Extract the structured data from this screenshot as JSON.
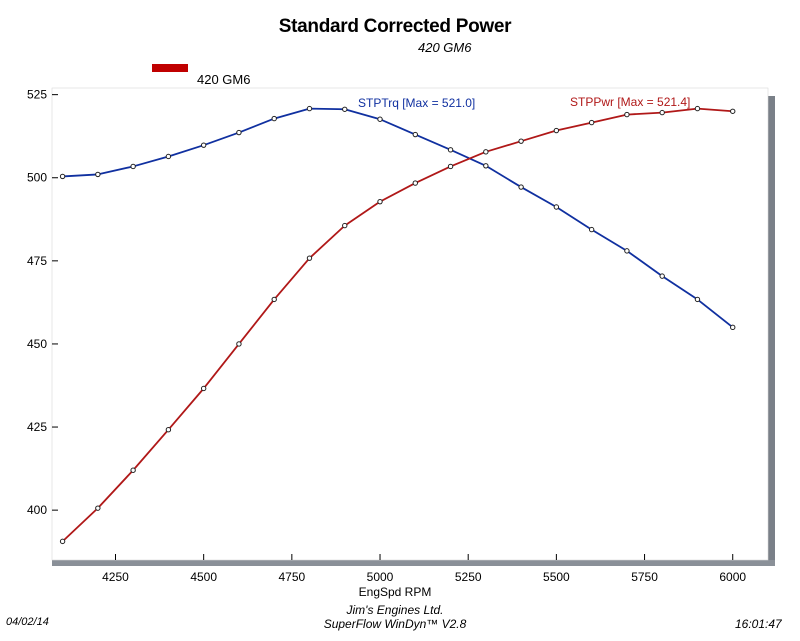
{
  "chart_data": {
    "type": "line",
    "title": "Standard Corrected Power",
    "subtitle": "420  GM6",
    "legend": {
      "label": "420  GM6",
      "color": "#c00000",
      "placement": "top-left"
    },
    "xlabel": "EngSpd  RPM",
    "ylabel": "",
    "xlim": [
      4070,
      6100
    ],
    "ylim": [
      385,
      527
    ],
    "xticks": [
      4250,
      4500,
      4750,
      5000,
      5250,
      5500,
      5750,
      6000
    ],
    "yticks": [
      400,
      425,
      450,
      475,
      500,
      525
    ],
    "grid": false,
    "x": [
      4100,
      4200,
      4300,
      4400,
      4500,
      4600,
      4700,
      4800,
      4900,
      5000,
      5100,
      5200,
      5300,
      5400,
      5500,
      5600,
      5700,
      5800,
      5900,
      6000
    ],
    "series": [
      {
        "name": "STPTrq",
        "annotation": "STPTrq [Max = 521.0]",
        "color": "#1030a0",
        "values": [
          500.4,
          501.0,
          503.4,
          506.4,
          509.8,
          513.6,
          517.8,
          520.8,
          520.6,
          517.6,
          513.0,
          508.4,
          503.6,
          497.2,
          491.2,
          484.4,
          478.0,
          470.4,
          463.4,
          455.0
        ]
      },
      {
        "name": "STPPwr",
        "annotation": "STPPwr [Max = 521.4]",
        "color": "#b01818",
        "values": [
          390.6,
          400.6,
          412.0,
          424.2,
          436.6,
          450.0,
          463.4,
          475.8,
          485.6,
          492.8,
          498.4,
          503.4,
          507.8,
          511.0,
          514.2,
          516.6,
          519.0,
          519.6,
          520.8,
          520.0
        ]
      }
    ]
  },
  "footer": {
    "date": "04/02/14",
    "company": "Jim's Engines Ltd.",
    "software": "SuperFlow WinDyn™ V2.8",
    "time": "16:01:47"
  }
}
